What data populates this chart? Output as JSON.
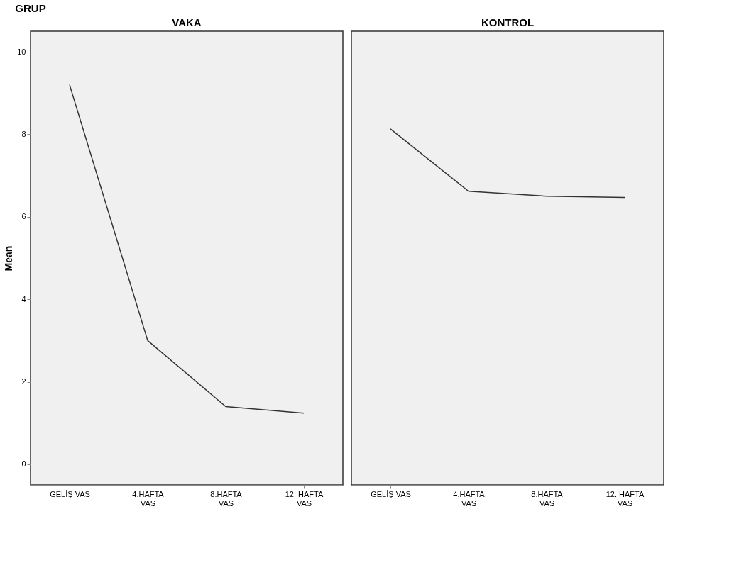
{
  "chart_data": [
    {
      "type": "line",
      "title": "VAKA",
      "ylabel": "Mean",
      "annotations": [
        "GRUP"
      ],
      "categories": [
        "GELİŞ VAS",
        "4.HAFTA VAS",
        "8.HAFTA VAS",
        "12. HAFTA VAS"
      ],
      "series": [
        {
          "color": "#333333",
          "values": [
            9.2,
            3.0,
            1.4,
            1.24
          ]
        }
      ],
      "ylim": [
        -0.5,
        10.5
      ],
      "yticks": [
        0,
        2,
        4,
        6,
        8,
        10
      ],
      "grid": false
    },
    {
      "type": "line",
      "title": "KONTROL",
      "categories": [
        "GELİŞ VAS",
        "4.HAFTA VAS",
        "8.HAFTA VAS",
        "12. HAFTA VAS"
      ],
      "series": [
        {
          "color": "#333333",
          "values": [
            8.13,
            6.62,
            6.5,
            6.47
          ]
        }
      ],
      "ylim": [
        -0.5,
        10.5
      ],
      "yticks": [
        0,
        2,
        4,
        6,
        8,
        10
      ],
      "grid": false,
      "tick_labels": "x"
    }
  ]
}
